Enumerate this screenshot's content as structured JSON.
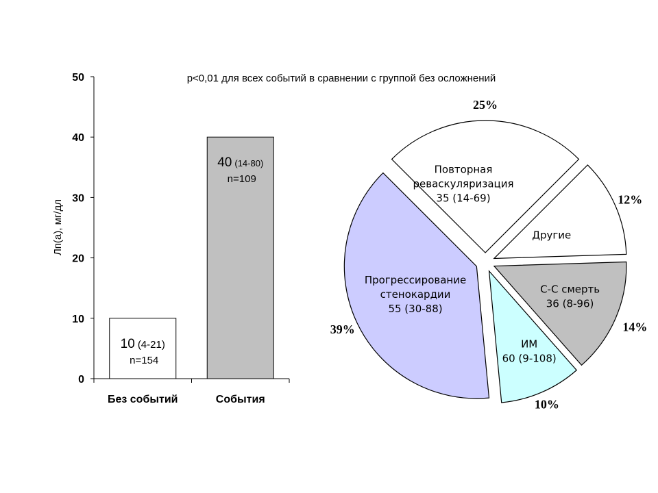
{
  "note": "p<0,01 для всех событий в сравнении с группой без осложнений",
  "chart_data": [
    {
      "type": "bar",
      "ylabel": "Лп(а), мг/дл",
      "ylim": [
        0,
        50
      ],
      "yticks": [
        0,
        10,
        20,
        30,
        40,
        50
      ],
      "categories": [
        "Без событий",
        "События"
      ],
      "values": [
        10,
        40
      ],
      "colors": [
        "#ffffff",
        "#c0c0c0"
      ],
      "labels": [
        {
          "value": "10",
          "range": "(4-21)",
          "n": "n=154"
        },
        {
          "value": "40",
          "range": "(14-80)",
          "n": "n=109"
        }
      ],
      "grid": false
    },
    {
      "type": "pie",
      "slices": [
        {
          "label": "Другие",
          "value": 12,
          "percent": "12%",
          "color": "#ffffff",
          "sub": []
        },
        {
          "label": "С-С смерть",
          "value": 14,
          "percent": "14%",
          "color": "#c0c0c0",
          "sub": [
            "36 (8-96)"
          ]
        },
        {
          "label": "ИМ",
          "value": 10,
          "percent": "10%",
          "color": "#ccffff",
          "sub": [
            "60 (9-108)"
          ]
        },
        {
          "label": "Прогрессирование",
          "value": 39,
          "percent": "39%",
          "color": "#ccccff",
          "sub": [
            "стенокардии",
            "55 (30-88)"
          ]
        },
        {
          "label": "Повторная",
          "value": 25,
          "percent": "25%",
          "color": "#ffffff",
          "sub": [
            "реваскуляризация",
            "35 (14-69)"
          ]
        }
      ]
    }
  ]
}
